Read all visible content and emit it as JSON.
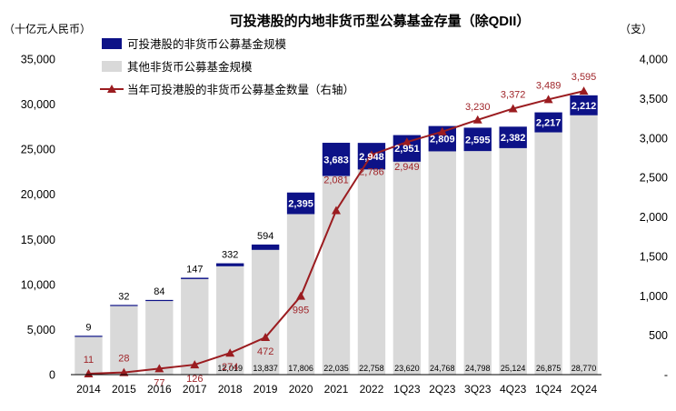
{
  "chart_data": {
    "type": "bar",
    "title": "可投港股的内地非货币型公募基金存量（除QDII）",
    "left_unit": "（十亿元人民币）",
    "right_unit": "（支）",
    "categories": [
      "2014",
      "2015",
      "2016",
      "2017",
      "2018",
      "2019",
      "2020",
      "2021",
      "2022",
      "1Q23",
      "2Q23",
      "3Q23",
      "4Q23",
      "1Q24",
      "2Q24"
    ],
    "series": [
      {
        "name": "可投港股的非货币公募基金规模",
        "kind": "stacked-bar",
        "axis": "left",
        "color": "#0d1287",
        "values": [
          9,
          32,
          84,
          147,
          332,
          594,
          2395,
          3683,
          2948,
          2951,
          2809,
          2595,
          2382,
          2217,
          2212
        ],
        "labels": [
          "9",
          "32",
          "84",
          "147",
          "332",
          "594",
          "2,395",
          "3,683",
          "2,948",
          "2,951",
          "2,809",
          "2,595",
          "2,382",
          "2,217",
          "2,212"
        ]
      },
      {
        "name": "其他非货币公募基金规模",
        "kind": "stacked-bar",
        "axis": "left",
        "color": "#d9d9d9",
        "values": [
          4300,
          7700,
          8200,
          10600,
          12019,
          13837,
          17806,
          22035,
          22758,
          23620,
          24768,
          24798,
          25124,
          26875,
          28770
        ],
        "labels": [
          "",
          "",
          "",
          "",
          "12,019",
          "13,837",
          "17,806",
          "22,035",
          "22,758",
          "23,620",
          "24,768",
          "24,798",
          "25,124",
          "26,875",
          "28,770"
        ]
      },
      {
        "name": "当年可投港股的非货币公募基金数量（右轴）",
        "kind": "line",
        "axis": "right",
        "color": "#9b1c20",
        "values": [
          11,
          28,
          77,
          126,
          274,
          472,
          995,
          2081,
          2786,
          2949,
          3080,
          3230,
          3372,
          3489,
          3595
        ],
        "labels": [
          "11",
          "28",
          "77",
          "126",
          "274",
          "472",
          "995",
          "2,081",
          "2,786",
          "2,949",
          "",
          "3,230",
          "3,372",
          "3,489",
          "3,595"
        ]
      }
    ],
    "y_left": {
      "min": 0,
      "max": 35000,
      "ticks": [
        "0",
        "5,000",
        "10,000",
        "15,000",
        "20,000",
        "25,000",
        "30,000",
        "35,000"
      ]
    },
    "y_right": {
      "min": 0,
      "max": 4000,
      "ticks": [
        "-",
        "500",
        "1,000",
        "1,500",
        "2,000",
        "2,500",
        "3,000",
        "3,500",
        "4,000"
      ]
    },
    "grid": false,
    "legend_position": "top-left"
  }
}
